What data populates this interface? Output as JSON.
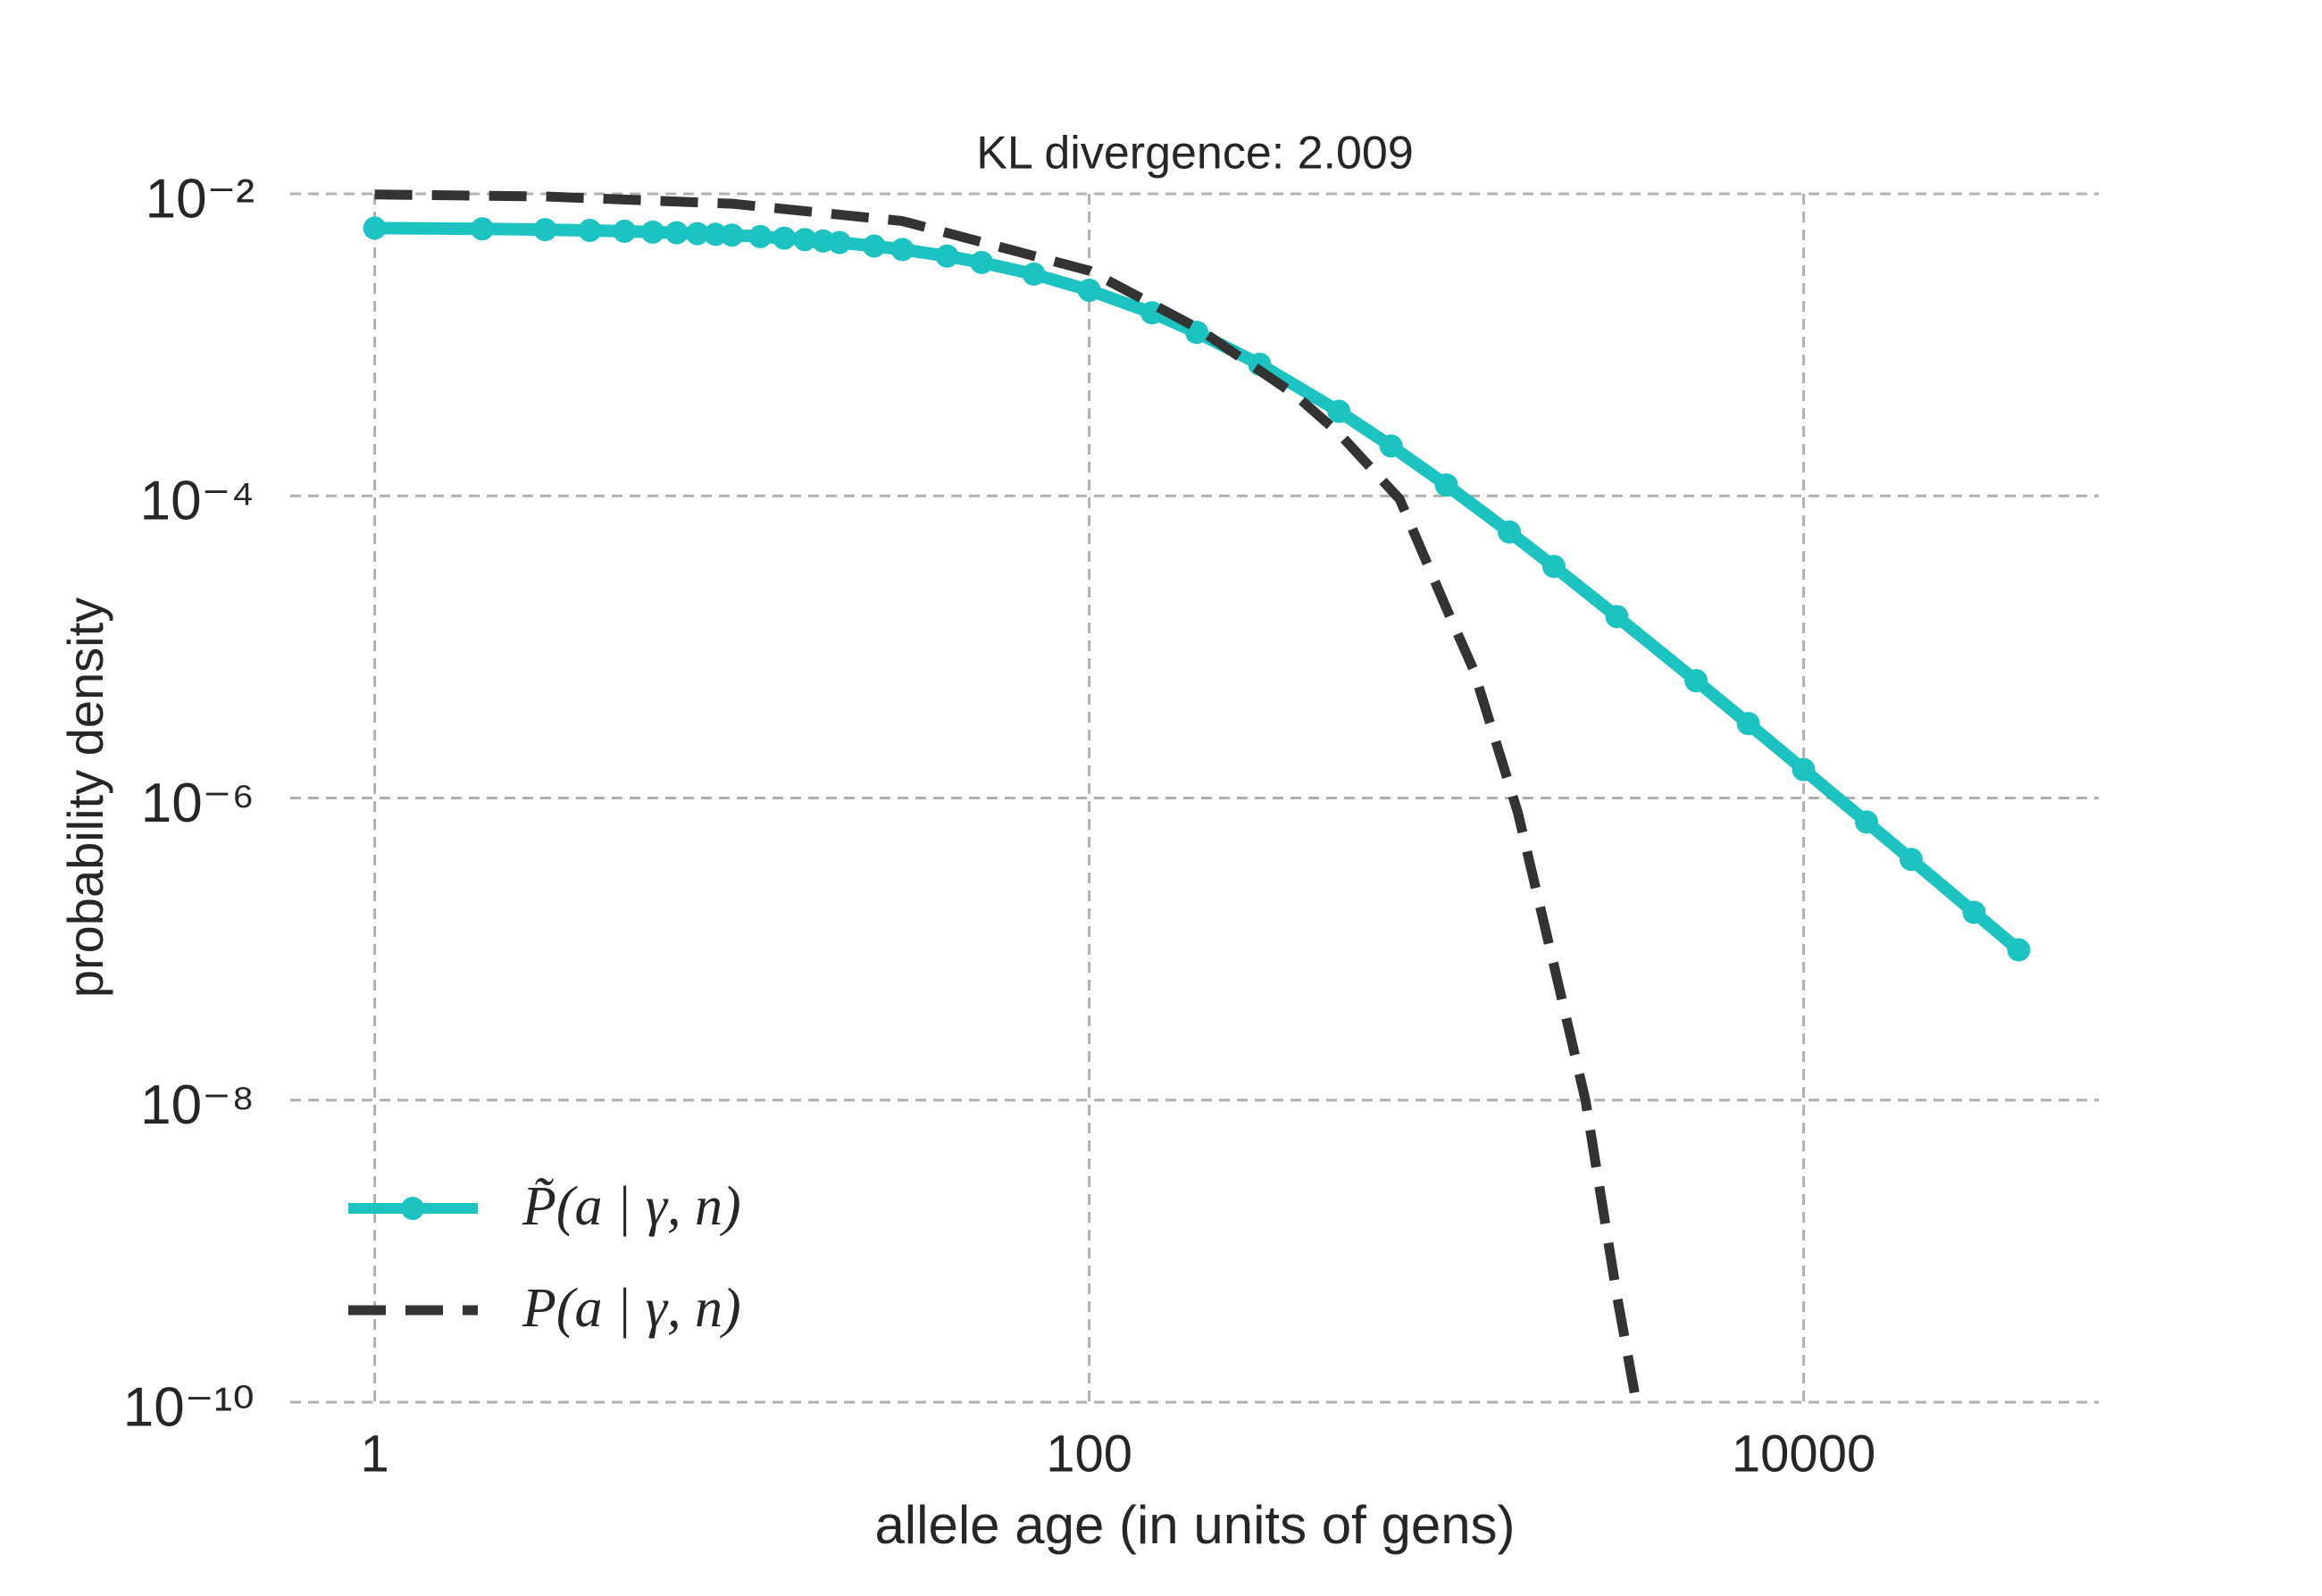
{
  "chart_data": {
    "type": "line",
    "title": "KL divergence: 2.009",
    "xlabel": "allele age (in units of gens)",
    "ylabel": "probability density",
    "xscale": "log",
    "yscale": "log",
    "grid": true,
    "legend_loc": "lower left",
    "xlim": [
      0.58,
      67000
    ],
    "ylim": [
      1e-10,
      0.01
    ],
    "xticks": [
      1,
      100,
      10000
    ],
    "yticks": [
      {
        "value": 0.01,
        "label": "10⁻²"
      },
      {
        "value": 0.0001,
        "label": "10⁻⁴"
      },
      {
        "value": 1e-06,
        "label": "10⁻⁶"
      },
      {
        "value": 1e-08,
        "label": "10⁻⁸"
      },
      {
        "value": 1e-10,
        "label": "10⁻¹⁰"
      }
    ],
    "series": [
      {
        "name": "P̃(a | γ, n)",
        "color": "#1cc3c0",
        "style": "solid",
        "markers": true,
        "x": [
          1,
          2,
          3,
          4,
          5,
          6,
          7,
          8,
          9,
          10,
          12,
          14,
          16,
          18,
          20,
          25,
          30,
          40,
          50,
          70,
          100,
          150,
          200,
          300,
          500,
          700,
          1000,
          1500,
          2000,
          3000,
          5000,
          7000,
          10000,
          15000,
          20000,
          30000,
          40000
        ],
        "values": [
          0.00593,
          0.00586,
          0.00579,
          0.00572,
          0.00565,
          0.00558,
          0.00552,
          0.00545,
          0.00539,
          0.00533,
          0.00521,
          0.00509,
          0.00498,
          0.00487,
          0.00476,
          0.00451,
          0.00428,
          0.00387,
          0.00351,
          0.00294,
          0.0023,
          0.00163,
          0.00121,
          0.000744,
          0.000363,
          0.000214,
          0.000118,
          5.77e-05,
          3.41e-05,
          1.59e-05,
          5.98e-06,
          3.11e-06,
          1.54e-06,
          6.94e-07,
          3.92e-07,
          1.75e-07,
          9.88e-08
        ]
      },
      {
        "name": "P(a | γ, n)",
        "color": "#333333",
        "style": "dashed",
        "markers": false,
        "x": [
          1,
          3,
          10,
          30,
          100,
          200,
          376,
          500,
          740,
          1000,
          1190,
          1585,
          2000,
          2450,
          3000,
          3400
        ],
        "values": [
          0.0099,
          0.0096,
          0.0086,
          0.0066,
          0.0031,
          0.0013,
          0.00047,
          0.00026,
          9.5e-05,
          1.8e-05,
          7.1e-06,
          8e-07,
          7.8e-08,
          1e-08,
          5.1e-10,
          1e-10
        ]
      }
    ]
  }
}
